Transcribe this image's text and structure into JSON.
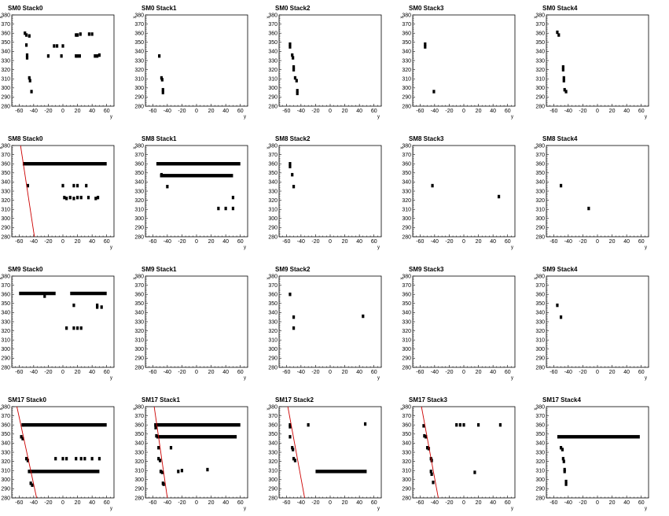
{
  "chart_data": [
    {
      "type": "scatter",
      "title": "SM0 Stack0",
      "xlabel": "y",
      "ylabel": "x",
      "xlim": [
        -70,
        70
      ],
      "ylim": [
        280,
        380
      ],
      "points": [
        [
          -52,
          360
        ],
        [
          -50,
          358
        ],
        [
          -46,
          357
        ],
        [
          -50,
          347
        ],
        [
          -49,
          336
        ],
        [
          -49,
          333
        ],
        [
          -46,
          311
        ],
        [
          -45,
          308
        ],
        [
          -43,
          296
        ],
        [
          -20,
          335
        ],
        [
          -12,
          346
        ],
        [
          -8,
          346
        ],
        [
          -2,
          335
        ],
        [
          0,
          346
        ],
        [
          18,
          358
        ],
        [
          20,
          358
        ],
        [
          24,
          359
        ],
        [
          36,
          359
        ],
        [
          40,
          359
        ],
        [
          18,
          335
        ],
        [
          20,
          335
        ],
        [
          23,
          335
        ],
        [
          44,
          335
        ],
        [
          47,
          335
        ],
        [
          50,
          336
        ]
      ],
      "lines": []
    },
    {
      "type": "scatter",
      "title": "SM0 Stack1",
      "xlabel": "y",
      "ylabel": "x",
      "xlim": [
        -70,
        70
      ],
      "ylim": [
        280,
        380
      ],
      "points": [
        [
          -51,
          335
        ],
        [
          -48,
          311
        ],
        [
          -47,
          309
        ],
        [
          -46,
          298
        ],
        [
          -46,
          295
        ]
      ],
      "lines": []
    },
    {
      "type": "scatter",
      "title": "SM0 Stack2",
      "xlabel": "y",
      "ylabel": "x",
      "xlim": [
        -70,
        70
      ],
      "ylim": [
        280,
        380
      ],
      "points": [
        [
          -55,
          348
        ],
        [
          -55,
          345
        ],
        [
          -52,
          336
        ],
        [
          -51,
          333
        ],
        [
          -50,
          323
        ],
        [
          -50,
          320
        ],
        [
          -48,
          311
        ],
        [
          -46,
          308
        ],
        [
          -45,
          297
        ],
        [
          -45,
          294
        ]
      ],
      "lines": []
    },
    {
      "type": "scatter",
      "title": "SM0 Stack3",
      "xlabel": "y",
      "ylabel": "x",
      "xlim": [
        -70,
        70
      ],
      "ylim": [
        280,
        380
      ],
      "points": [
        [
          -53,
          348
        ],
        [
          -53,
          345
        ],
        [
          -41,
          296
        ]
      ],
      "lines": []
    },
    {
      "type": "scatter",
      "title": "SM0 Stack4",
      "xlabel": "y",
      "ylabel": "x",
      "xlim": [
        -70,
        70
      ],
      "ylim": [
        280,
        380
      ],
      "points": [
        [
          -55,
          361
        ],
        [
          -53,
          358
        ],
        [
          -47,
          323
        ],
        [
          -47,
          320
        ],
        [
          -46,
          311
        ],
        [
          -46,
          308
        ],
        [
          -45,
          298
        ],
        [
          -43,
          296
        ]
      ],
      "lines": []
    },
    {
      "type": "scatter",
      "title": "SM8 Stack0",
      "xlabel": "y",
      "ylabel": "x",
      "xlim": [
        -70,
        70
      ],
      "ylim": [
        280,
        380
      ],
      "points": [
        [
          -48,
          336
        ],
        [
          0,
          336
        ],
        [
          15,
          336
        ],
        [
          20,
          336
        ],
        [
          32,
          336
        ],
        [
          2,
          323
        ],
        [
          5,
          322
        ],
        [
          10,
          323
        ],
        [
          15,
          322
        ],
        [
          20,
          323
        ],
        [
          25,
          323
        ],
        [
          35,
          323
        ],
        [
          45,
          322
        ],
        [
          48,
          323
        ]
      ],
      "hbars": [
        {
          "x0": -55,
          "x1": 60,
          "y": 360
        }
      ],
      "lines": [
        {
          "x": [
            -58,
            -39
          ],
          "y": [
            380,
            280
          ],
          "color": "#cc0000"
        }
      ]
    },
    {
      "type": "scatter",
      "title": "SM8 Stack1",
      "xlabel": "y",
      "ylabel": "x",
      "xlim": [
        -70,
        70
      ],
      "ylim": [
        280,
        380
      ],
      "points": [
        [
          -48,
          348
        ],
        [
          -40,
          335
        ],
        [
          30,
          311
        ],
        [
          40,
          311
        ],
        [
          50,
          323
        ],
        [
          50,
          311
        ]
      ],
      "hbars": [
        {
          "x0": -55,
          "x1": 60,
          "y": 360
        },
        {
          "x0": -50,
          "x1": 50,
          "y": 347
        }
      ],
      "lines": []
    },
    {
      "type": "scatter",
      "title": "SM8 Stack2",
      "xlabel": "y",
      "ylabel": "x",
      "xlim": [
        -70,
        70
      ],
      "ylim": [
        280,
        380
      ],
      "points": [
        [
          -55,
          360
        ],
        [
          -55,
          357
        ],
        [
          -52,
          348
        ],
        [
          -50,
          335
        ]
      ],
      "lines": []
    },
    {
      "type": "scatter",
      "title": "SM8 Stack3",
      "xlabel": "y",
      "ylabel": "x",
      "xlim": [
        -70,
        70
      ],
      "ylim": [
        280,
        380
      ],
      "points": [
        [
          -43,
          336
        ],
        [
          48,
          324
        ]
      ],
      "lines": []
    },
    {
      "type": "scatter",
      "title": "SM8 Stack4",
      "xlabel": "y",
      "ylabel": "x",
      "xlim": [
        -70,
        70
      ],
      "ylim": [
        280,
        380
      ],
      "points": [
        [
          -50,
          336
        ],
        [
          -12,
          311
        ]
      ],
      "lines": []
    },
    {
      "type": "scatter",
      "title": "SM9 Stack0",
      "xlabel": "y",
      "ylabel": "x",
      "xlim": [
        -70,
        70
      ],
      "ylim": [
        280,
        380
      ],
      "points": [
        [
          -25,
          358
        ],
        [
          15,
          348
        ],
        [
          47,
          348
        ],
        [
          47,
          346
        ],
        [
          53,
          346
        ],
        [
          5,
          323
        ],
        [
          15,
          323
        ],
        [
          20,
          323
        ],
        [
          25,
          323
        ]
      ],
      "hbars": [
        {
          "x0": -60,
          "x1": -10,
          "y": 361
        },
        {
          "x0": 10,
          "x1": 60,
          "y": 361
        }
      ],
      "lines": []
    },
    {
      "type": "scatter",
      "title": "SM9 Stack1",
      "xlabel": "y",
      "ylabel": "x",
      "xlim": [
        -70,
        70
      ],
      "ylim": [
        280,
        380
      ],
      "points": [],
      "lines": []
    },
    {
      "type": "scatter",
      "title": "SM9 Stack2",
      "xlabel": "y",
      "ylabel": "x",
      "xlim": [
        -70,
        70
      ],
      "ylim": [
        280,
        380
      ],
      "points": [
        [
          -55,
          360
        ],
        [
          -50,
          335
        ],
        [
          -50,
          323
        ],
        [
          45,
          336
        ]
      ],
      "lines": []
    },
    {
      "type": "scatter",
      "title": "SM9 Stack3",
      "xlabel": "y",
      "ylabel": "x",
      "xlim": [
        -70,
        70
      ],
      "ylim": [
        280,
        380
      ],
      "points": [],
      "lines": []
    },
    {
      "type": "scatter",
      "title": "SM9 Stack4",
      "xlabel": "y",
      "ylabel": "x",
      "xlim": [
        -70,
        70
      ],
      "ylim": [
        280,
        380
      ],
      "points": [
        [
          -55,
          348
        ],
        [
          -50,
          335
        ]
      ],
      "lines": []
    },
    {
      "type": "scatter",
      "title": "SM17 Stack0",
      "xlabel": "y",
      "ylabel": "x",
      "xlim": [
        -70,
        70
      ],
      "ylim": [
        280,
        380
      ],
      "points": [
        [
          -55,
          360
        ],
        [
          -57,
          347
        ],
        [
          -55,
          345
        ],
        [
          -50,
          323
        ],
        [
          -48,
          321
        ],
        [
          -45,
          309
        ],
        [
          -44,
          296
        ],
        [
          -42,
          294
        ],
        [
          -10,
          323
        ],
        [
          0,
          323
        ],
        [
          5,
          323
        ],
        [
          18,
          323
        ],
        [
          25,
          323
        ],
        [
          30,
          323
        ],
        [
          40,
          323
        ],
        [
          50,
          323
        ]
      ],
      "hbars": [
        {
          "x0": -55,
          "x1": 60,
          "y": 360
        },
        {
          "x0": -48,
          "x1": 50,
          "y": 309
        }
      ],
      "lines": [
        {
          "x": [
            -63,
            -36
          ],
          "y": [
            380,
            280
          ],
          "color": "#cc0000"
        }
      ]
    },
    {
      "type": "scatter",
      "title": "SM17 Stack1",
      "xlabel": "y",
      "ylabel": "x",
      "xlim": [
        -70,
        70
      ],
      "ylim": [
        280,
        380
      ],
      "points": [
        [
          -56,
          357
        ],
        [
          -55,
          348
        ],
        [
          -52,
          335
        ],
        [
          -52,
          323
        ],
        [
          -50,
          321
        ],
        [
          -49,
          309
        ],
        [
          -47,
          308
        ],
        [
          -46,
          296
        ],
        [
          -45,
          295
        ],
        [
          -35,
          335
        ],
        [
          -25,
          309
        ],
        [
          -20,
          310
        ],
        [
          15,
          311
        ]
      ],
      "hbars": [
        {
          "x0": -58,
          "x1": 60,
          "y": 360
        },
        {
          "x0": -55,
          "x1": 55,
          "y": 347
        }
      ],
      "lines": [
        {
          "x": [
            -58,
            -40
          ],
          "y": [
            380,
            280
          ],
          "color": "#cc0000"
        }
      ]
    },
    {
      "type": "scatter",
      "title": "SM17 Stack2",
      "xlabel": "y",
      "ylabel": "x",
      "xlim": [
        -70,
        70
      ],
      "ylim": [
        280,
        380
      ],
      "points": [
        [
          -55,
          360
        ],
        [
          -55,
          358
        ],
        [
          -55,
          347
        ],
        [
          -52,
          335
        ],
        [
          -51,
          333
        ],
        [
          -50,
          323
        ],
        [
          -48,
          321
        ],
        [
          -30,
          360
        ],
        [
          48,
          361
        ]
      ],
      "hbars": [
        {
          "x0": -20,
          "x1": 50,
          "y": 309
        }
      ],
      "lines": [
        {
          "x": [
            -58,
            -35
          ],
          "y": [
            380,
            280
          ],
          "color": "#cc0000"
        }
      ]
    },
    {
      "type": "scatter",
      "title": "SM17 Stack3",
      "xlabel": "y",
      "ylabel": "x",
      "xlim": [
        -70,
        70
      ],
      "ylim": [
        280,
        380
      ],
      "points": [
        [
          -55,
          359
        ],
        [
          -54,
          348
        ],
        [
          -52,
          347
        ],
        [
          -50,
          335
        ],
        [
          -48,
          334
        ],
        [
          -45,
          323
        ],
        [
          -44,
          321
        ],
        [
          -45,
          309
        ],
        [
          -44,
          306
        ],
        [
          -42,
          297
        ],
        [
          -10,
          360
        ],
        [
          -5,
          360
        ],
        [
          0,
          360
        ],
        [
          20,
          360
        ],
        [
          50,
          360
        ],
        [
          15,
          308
        ]
      ],
      "lines": [
        {
          "x": [
            -58,
            -35
          ],
          "y": [
            380,
            280
          ],
          "color": "#cc0000"
        }
      ]
    },
    {
      "type": "scatter",
      "title": "SM17 Stack4",
      "xlabel": "y",
      "ylabel": "x",
      "xlim": [
        -70,
        70
      ],
      "ylim": [
        280,
        380
      ],
      "points": [
        [
          -50,
          335
        ],
        [
          -48,
          333
        ],
        [
          -47,
          323
        ],
        [
          -46,
          320
        ],
        [
          -45,
          311
        ],
        [
          -45,
          309
        ],
        [
          -43,
          298
        ],
        [
          -43,
          295
        ]
      ],
      "hbars": [
        {
          "x0": -55,
          "x1": 58,
          "y": 347
        }
      ],
      "lines": []
    }
  ],
  "axes": {
    "xticks": [
      -60,
      -40,
      -20,
      0,
      20,
      40,
      60
    ],
    "yticks": [
      280,
      290,
      300,
      310,
      320,
      330,
      340,
      350,
      360,
      370,
      380
    ]
  }
}
